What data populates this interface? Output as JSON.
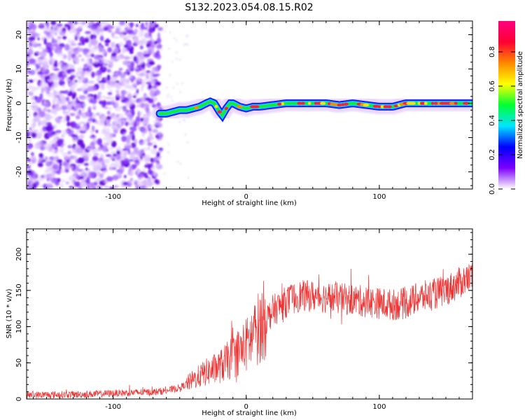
{
  "figure": {
    "title": "S132.2023.054.08.15.R02"
  },
  "chart_data": [
    {
      "type": "heatmap",
      "xlabel": "Height of straight line (km)",
      "ylabel": "Frequency (Hz)",
      "xlim": [
        -165,
        170
      ],
      "ylim": [
        -25,
        24
      ],
      "x_ticks": [
        -100,
        0,
        100
      ],
      "y_ticks": [
        -20,
        -10,
        0,
        10,
        20
      ],
      "noise_region_x": [
        -165,
        -64
      ],
      "noise_freq_range": [
        -25,
        24
      ],
      "ridge": {
        "x": [
          -65,
          -60,
          -55,
          -50,
          -45,
          -40,
          -35,
          -30,
          -27,
          -24,
          -20,
          -18,
          -15,
          -12,
          -10,
          -5,
          0,
          5,
          10,
          20,
          30,
          40,
          50,
          60,
          70,
          80,
          90,
          100,
          110,
          120,
          130,
          140,
          150,
          160,
          170
        ],
        "hz": [
          -3,
          -3,
          -2.5,
          -2,
          -2,
          -1.5,
          -1,
          0,
          0.5,
          0,
          -2.5,
          -3.5,
          -1.5,
          0,
          0,
          -1,
          -1.5,
          -1,
          -1,
          -0.5,
          0,
          0,
          0,
          0,
          -0.5,
          0,
          -0.5,
          -1,
          -1,
          0,
          0,
          0,
          0,
          0,
          0
        ]
      },
      "colorbar": {
        "label": "Normalized spectral amplitude",
        "ticks": [
          "0.0",
          "0.2",
          "0.4",
          "0.6",
          "0.8"
        ],
        "range": [
          0,
          0.98
        ],
        "colors": [
          "#ffffff",
          "#7b00ff",
          "#0000ff",
          "#00e5ff",
          "#00ff33",
          "#ffff00",
          "#ff8800",
          "#ff0033",
          "#ff0080"
        ]
      }
    },
    {
      "type": "line",
      "xlabel": "Height of straight line (km)",
      "ylabel": "SNR (10 * v/v)",
      "xlim": [
        -165,
        170
      ],
      "ylim": [
        0,
        235
      ],
      "x_ticks": [
        -100,
        0,
        100
      ],
      "y_ticks": [
        0,
        50,
        100,
        150,
        200
      ],
      "color": "#ee3333",
      "trend": {
        "x": [
          -165,
          -120,
          -90,
          -70,
          -60,
          -50,
          -40,
          -30,
          -20,
          -10,
          0,
          10,
          20,
          30,
          40,
          50,
          60,
          80,
          100,
          110,
          120,
          130,
          140,
          150,
          160,
          170
        ],
        "y": [
          5,
          6,
          8,
          9,
          11,
          15,
          25,
          35,
          42,
          55,
          70,
          95,
          120,
          132,
          140,
          140,
          138,
          135,
          130,
          128,
          130,
          138,
          142,
          148,
          158,
          168
        ]
      }
    }
  ]
}
